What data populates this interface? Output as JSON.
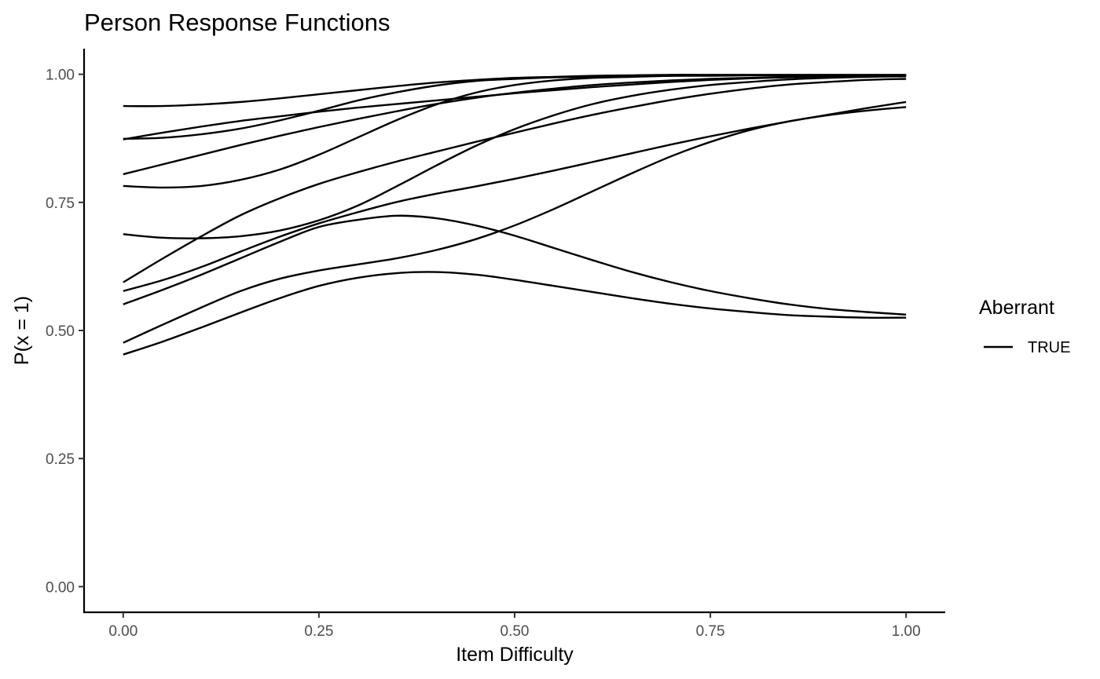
{
  "chart_data": {
    "type": "line",
    "title": "Person Response Functions",
    "xlabel": "Item Difficulty",
    "ylabel": "P(x = 1)",
    "xlim": [
      -0.05,
      1.05
    ],
    "ylim": [
      -0.05,
      1.05
    ],
    "x_ticks": [
      0,
      0.25,
      0.5,
      0.75,
      1
    ],
    "x_tick_labels": [
      "0.00",
      "0.25",
      "0.50",
      "0.75",
      "1.00"
    ],
    "y_ticks": [
      0,
      0.25,
      0.5,
      0.75,
      1
    ],
    "y_tick_labels": [
      "0.00",
      "0.25",
      "0.50",
      "0.75",
      "1.00"
    ],
    "grid": false,
    "legend": {
      "title": "Aberrant",
      "placement": "right",
      "entries": [
        {
          "label": "TRUE",
          "color": "#000000"
        }
      ]
    },
    "x": [
      0,
      0.05,
      0.1,
      0.15,
      0.2,
      0.25,
      0.3,
      0.35,
      0.4,
      0.45,
      0.5,
      0.55,
      0.6,
      0.65,
      0.7,
      0.75,
      0.8,
      0.85,
      0.9,
      0.95,
      1
    ],
    "series": [
      {
        "values": [
          0.938,
          0.938,
          0.941,
          0.946,
          0.953,
          0.961,
          0.969,
          0.977,
          0.984,
          0.989,
          0.993,
          0.995,
          0.997,
          0.998,
          0.999,
          0.999,
          0.999,
          0.999,
          0.999,
          0.999,
          0.999
        ]
      },
      {
        "values": [
          0.873,
          0.886,
          0.898,
          0.909,
          0.918,
          0.927,
          0.935,
          0.942,
          0.949,
          0.956,
          0.963,
          0.969,
          0.975,
          0.98,
          0.985,
          0.989,
          0.992,
          0.994,
          0.996,
          0.997,
          0.998
        ]
      },
      {
        "values": [
          0.874,
          0.876,
          0.883,
          0.894,
          0.91,
          0.929,
          0.949,
          0.965,
          0.978,
          0.987,
          0.991,
          0.994,
          0.995,
          0.996,
          0.997,
          0.997,
          0.998,
          0.998,
          0.998,
          0.998,
          0.998
        ]
      },
      {
        "values": [
          0.805,
          0.824,
          0.843,
          0.862,
          0.88,
          0.897,
          0.913,
          0.928,
          0.942,
          0.954,
          0.964,
          0.972,
          0.979,
          0.984,
          0.988,
          0.991,
          0.993,
          0.995,
          0.996,
          0.997,
          0.998
        ]
      },
      {
        "values": [
          0.782,
          0.779,
          0.782,
          0.794,
          0.814,
          0.843,
          0.877,
          0.911,
          0.941,
          0.964,
          0.979,
          0.988,
          0.993,
          0.995,
          0.997,
          0.998,
          0.998,
          0.998,
          0.998,
          0.998,
          0.998
        ]
      },
      {
        "values": [
          0.594,
          0.64,
          0.684,
          0.725,
          0.758,
          0.786,
          0.809,
          0.83,
          0.849,
          0.868,
          0.886,
          0.904,
          0.921,
          0.936,
          0.95,
          0.962,
          0.972,
          0.98,
          0.985,
          0.989,
          0.991
        ]
      },
      {
        "values": [
          0.688,
          0.681,
          0.68,
          0.684,
          0.695,
          0.715,
          0.744,
          0.782,
          0.822,
          0.86,
          0.893,
          0.92,
          0.942,
          0.958,
          0.97,
          0.979,
          0.985,
          0.99,
          0.993,
          0.995,
          0.996
        ]
      },
      {
        "values": [
          0.577,
          0.598,
          0.624,
          0.654,
          0.683,
          0.709,
          0.731,
          0.751,
          0.767,
          0.781,
          0.796,
          0.812,
          0.829,
          0.846,
          0.863,
          0.879,
          0.894,
          0.908,
          0.921,
          0.934,
          0.946
        ]
      },
      {
        "values": [
          0.551,
          0.579,
          0.609,
          0.641,
          0.673,
          0.702,
          0.716,
          0.724,
          0.719,
          0.705,
          0.685,
          0.661,
          0.637,
          0.614,
          0.594,
          0.577,
          0.563,
          0.551,
          0.542,
          0.536,
          0.531
        ]
      },
      {
        "values": [
          0.476,
          0.511,
          0.545,
          0.577,
          0.601,
          0.617,
          0.629,
          0.641,
          0.657,
          0.678,
          0.705,
          0.737,
          0.772,
          0.807,
          0.84,
          0.868,
          0.891,
          0.908,
          0.92,
          0.929,
          0.936
        ]
      },
      {
        "values": [
          0.453,
          0.478,
          0.506,
          0.535,
          0.563,
          0.587,
          0.603,
          0.612,
          0.614,
          0.609,
          0.599,
          0.587,
          0.575,
          0.563,
          0.552,
          0.543,
          0.536,
          0.53,
          0.527,
          0.525,
          0.525
        ]
      }
    ]
  }
}
